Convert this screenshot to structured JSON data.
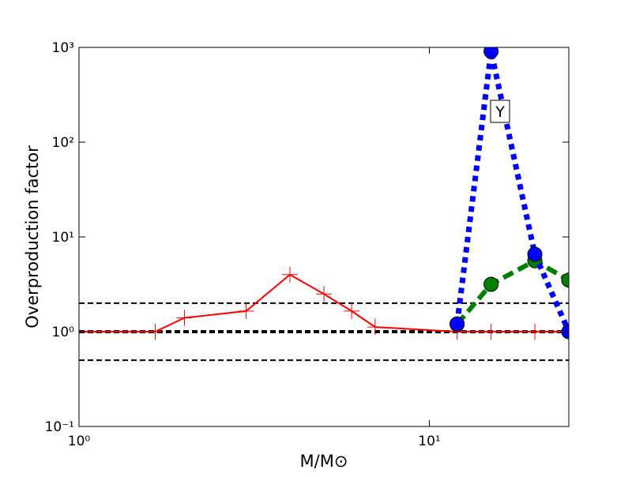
{
  "chart_data": {
    "type": "line",
    "xlabel": "M/M⊙",
    "ylabel": "Overproduction factor",
    "xscale": "log",
    "yscale": "log",
    "xlim": [
      1,
      25
    ],
    "ylim": [
      0.1,
      1000
    ],
    "xticks": [
      {
        "value": 1,
        "label": "10⁰"
      },
      {
        "value": 10,
        "label": "10¹"
      }
    ],
    "yticks": [
      {
        "value": 0.1,
        "label": "10⁻¹"
      },
      {
        "value": 1,
        "label": "10⁰"
      },
      {
        "value": 10,
        "label": "10¹"
      },
      {
        "value": 100,
        "label": "10²"
      },
      {
        "value": 1000,
        "label": "10³"
      }
    ],
    "hlines": [
      0.5,
      1,
      2
    ],
    "hline_color": "#000000",
    "series": [
      {
        "color": "#ff0000",
        "style": "solid",
        "marker": "plus",
        "x": [
          1,
          1.65,
          2,
          3,
          4,
          5,
          6,
          7,
          12,
          15,
          20,
          25
        ],
        "values": [
          1,
          1,
          1.4,
          1.65,
          4,
          2.5,
          1.65,
          1.12,
          1,
          1,
          1,
          1
        ]
      },
      {
        "color": "#008000",
        "style": "dashed",
        "marker": "circle",
        "x": [
          12,
          15,
          20,
          25
        ],
        "values": [
          1.2,
          3.16,
          5.6,
          3.5
        ]
      },
      {
        "color": "#0000ff",
        "style": "dotted",
        "marker": "circle",
        "x": [
          12,
          15,
          20,
          25
        ],
        "values": [
          1.21,
          910,
          6.56,
          1
        ]
      }
    ],
    "annotation": "Y"
  }
}
